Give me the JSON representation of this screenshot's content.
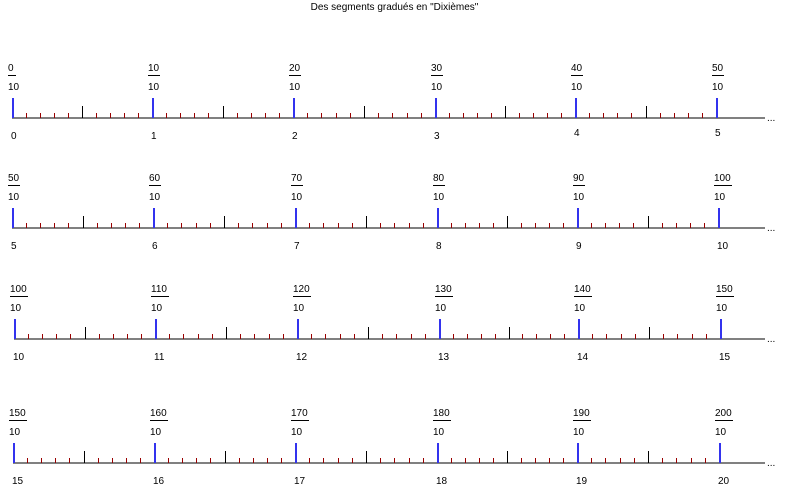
{
  "title": "Des segments gradués en \"Dixièmes\"",
  "fraction_denominator": "10",
  "continuation": "...",
  "colors": {
    "major_tick": "#3333ee",
    "minor_tick": "#990000",
    "half_tick": "#000000",
    "axis_line": "#000000"
  },
  "rows": [
    {
      "fractions": [
        "0",
        "10",
        "20",
        "30",
        "40",
        "50"
      ],
      "integers": [
        "0",
        "1",
        "2",
        "3",
        "4",
        "5"
      ]
    },
    {
      "fractions": [
        "50",
        "60",
        "70",
        "80",
        "90",
        "100"
      ],
      "integers": [
        "5",
        "6",
        "7",
        "8",
        "9",
        "10"
      ]
    },
    {
      "fractions": [
        "100",
        "110",
        "120",
        "130",
        "140",
        "150"
      ],
      "integers": [
        "10",
        "11",
        "12",
        "13",
        "14",
        "15"
      ]
    },
    {
      "fractions": [
        "150",
        "160",
        "170",
        "180",
        "190",
        "200"
      ],
      "integers": [
        "15",
        "16",
        "17",
        "18",
        "19",
        "20"
      ]
    }
  ]
}
